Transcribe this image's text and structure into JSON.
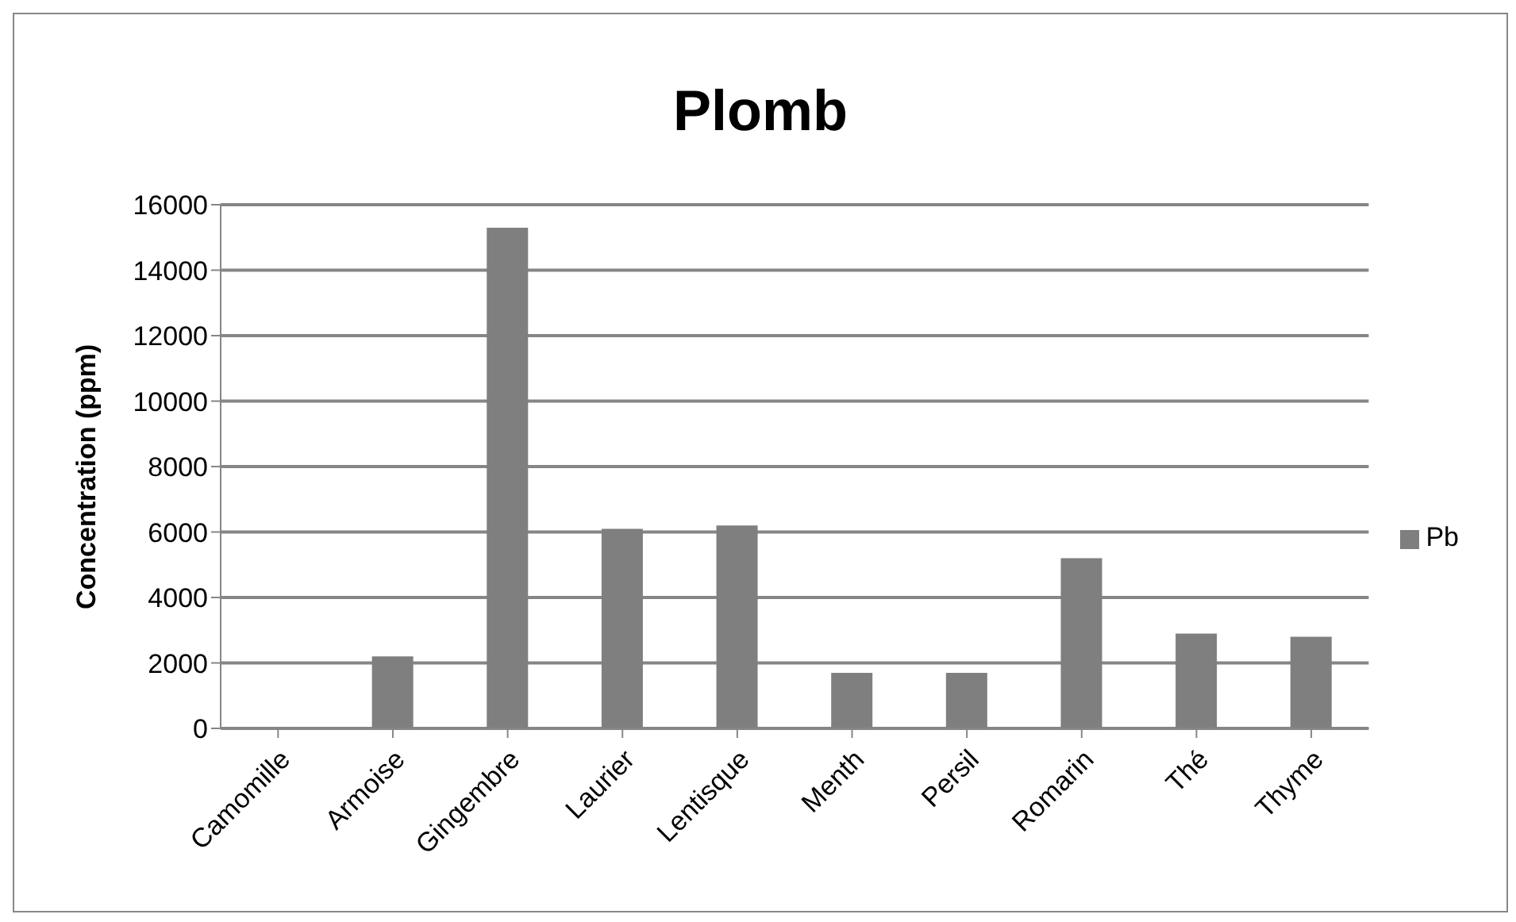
{
  "chart_data": {
    "type": "bar",
    "title": "Plomb",
    "ylabel": "Concentration (ppm)",
    "categories": [
      "Camomille",
      "Armoise",
      "Gingembre",
      "Laurier",
      "Lentisque",
      "Menth",
      "Persil",
      "Romarin",
      "Thé",
      "Thyme"
    ],
    "series": [
      {
        "name": "Pb",
        "color": "#7f7f7f",
        "values": [
          0,
          2200,
          15300,
          6100,
          6200,
          1700,
          1700,
          5200,
          2900,
          2800
        ]
      }
    ],
    "ylim": [
      0,
      16000
    ],
    "yticks": [
      0,
      2000,
      4000,
      6000,
      8000,
      10000,
      12000,
      14000,
      16000
    ],
    "grid": "y",
    "legend": "right"
  }
}
